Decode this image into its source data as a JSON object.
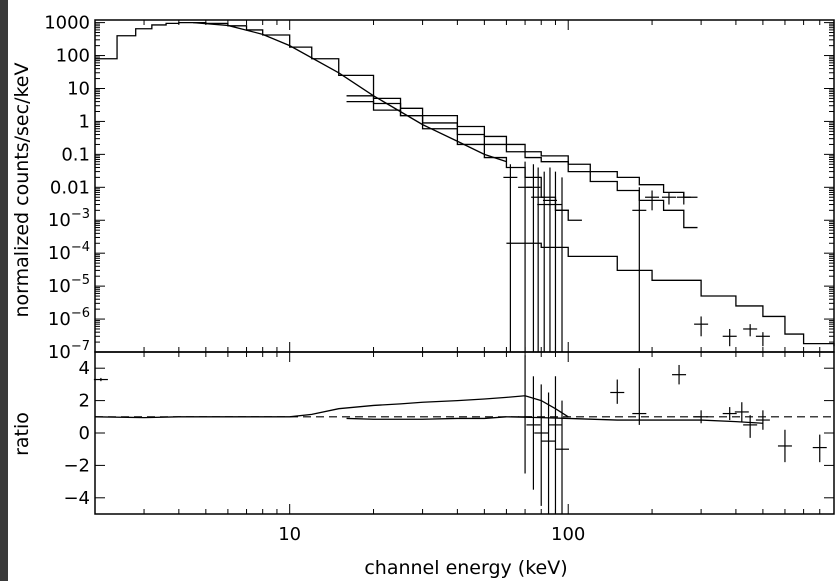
{
  "window": {
    "frame_color": "#3a3a3a",
    "background": "#ffffff",
    "ink": "#000000"
  },
  "chart_data": [
    {
      "type": "line",
      "panel": "top",
      "title": "",
      "xlabel": "",
      "ylabel": "normalized counts/sec/keV",
      "x_scale": "log",
      "y_scale": "log",
      "xlim": [
        2,
        900
      ],
      "ylim": [
        1e-07,
        1200
      ],
      "ytick_labels": [
        {
          "value": 1e-07,
          "base": "10",
          "exp": "−7"
        },
        {
          "value": 1e-06,
          "base": "10",
          "exp": "−6"
        },
        {
          "value": 1e-05,
          "base": "10",
          "exp": "−5"
        },
        {
          "value": 0.0001,
          "base": "10",
          "exp": "−4"
        },
        {
          "value": 0.001,
          "base": "10",
          "exp": "−3"
        },
        {
          "value": 0.01,
          "text": "0.01"
        },
        {
          "value": 0.1,
          "text": "0.1"
        },
        {
          "value": 1,
          "text": "1"
        },
        {
          "value": 10,
          "text": "10"
        },
        {
          "value": 100,
          "text": "100"
        },
        {
          "value": 1000,
          "text": "1000"
        }
      ],
      "series": [
        {
          "style": "step",
          "x": [
            2,
            2.4,
            2.8,
            3.2,
            3.6,
            4.0,
            4.5,
            5,
            6,
            7,
            8,
            10,
            12,
            15,
            20,
            25,
            30,
            40,
            50,
            60,
            70,
            80,
            90,
            100
          ],
          "y": [
            80,
            400,
            650,
            850,
            950,
            1000,
            1000,
            950,
            800,
            600,
            420,
            180,
            80,
            25,
            5,
            1.5,
            0.6,
            0.2,
            0.08,
            0.04,
            0.02,
            0.005,
            0.002,
            0.001
          ]
        },
        {
          "style": "line",
          "x": [
            4.5,
            6,
            8,
            10,
            15,
            20,
            30,
            40,
            50,
            60
          ],
          "y": [
            1000,
            820,
            440,
            200,
            30,
            6,
            0.8,
            0.25,
            0.1,
            0.06
          ]
        },
        {
          "style": "step",
          "x": [
            16,
            20,
            25,
            30,
            40,
            50,
            60,
            70,
            80,
            100,
            120,
            150,
            180,
            220,
            260
          ],
          "y": [
            4,
            2.2,
            1.5,
            0.9,
            0.4,
            0.2,
            0.12,
            0.08,
            0.06,
            0.03,
            0.015,
            0.008,
            0.004,
            0.002,
            0.0006
          ]
        },
        {
          "style": "step",
          "x": [
            16,
            20,
            25,
            30,
            40,
            50,
            60,
            70,
            80,
            100,
            120,
            150,
            180,
            220,
            260
          ],
          "y": [
            6,
            3.5,
            2.5,
            1.5,
            0.7,
            0.35,
            0.2,
            0.12,
            0.09,
            0.05,
            0.03,
            0.02,
            0.012,
            0.007,
            0.005
          ]
        },
        {
          "style": "step",
          "x": [
            60,
            80,
            100,
            150,
            200,
            300,
            400,
            500,
            600,
            700,
            900
          ],
          "y": [
            0.0002,
            0.00015,
            8e-05,
            3e-05,
            1.5e-05,
            5e-06,
            2.5e-06,
            1.2e-06,
            3.5e-07,
            1.8e-07,
            1.5e-07
          ]
        }
      ],
      "error_bars": [
        {
          "x": 62,
          "y": 0.02,
          "ylo": 1e-07,
          "yhi": 0.05
        },
        {
          "x": 70,
          "y": 0.01,
          "ylo": 1e-07,
          "yhi": 0.06
        },
        {
          "x": 75,
          "y": 0.01,
          "ylo": 1e-07,
          "yhi": 0.05
        },
        {
          "x": 78,
          "y": 0.005,
          "ylo": 1e-07,
          "yhi": 0.04
        },
        {
          "x": 82,
          "y": 0.003,
          "ylo": 1e-07,
          "yhi": 0.03
        },
        {
          "x": 86,
          "y": 0.004,
          "ylo": 1e-07,
          "yhi": 0.04
        },
        {
          "x": 90,
          "y": 0.003,
          "ylo": 1e-07,
          "yhi": 0.03
        },
        {
          "x": 95,
          "y": 0.002,
          "ylo": 1e-07,
          "yhi": 0.02
        },
        {
          "x": 180,
          "y": 0.002,
          "ylo": 1e-07,
          "yhi": 0.01
        },
        {
          "x": 200,
          "y": 0.005,
          "ylo": 0.002,
          "yhi": 0.008
        },
        {
          "x": 230,
          "y": 0.005,
          "ylo": 0.003,
          "yhi": 0.007
        },
        {
          "x": 260,
          "y": 0.005,
          "ylo": 0.003,
          "yhi": 0.007
        },
        {
          "x": 300,
          "y": 7e-07,
          "ylo": 3e-07,
          "yhi": 1.2e-06
        },
        {
          "x": 380,
          "y": 3e-07,
          "ylo": 1.5e-07,
          "yhi": 5e-07
        },
        {
          "x": 450,
          "y": 5e-07,
          "ylo": 3e-07,
          "yhi": 7e-07
        },
        {
          "x": 500,
          "y": 3e-07,
          "ylo": 1.5e-07,
          "yhi": 4e-07
        }
      ]
    },
    {
      "type": "line",
      "panel": "bottom",
      "title": "",
      "xlabel": "channel energy (keV)",
      "ylabel": "ratio",
      "x_scale": "log",
      "y_scale": "linear",
      "xlim": [
        2,
        900
      ],
      "ylim": [
        -5,
        5
      ],
      "xtick_labels": [
        {
          "value": 10,
          "text": "10"
        },
        {
          "value": 100,
          "text": "100"
        }
      ],
      "ytick_labels": [
        {
          "value": 4,
          "text": "4"
        },
        {
          "value": 2,
          "text": "2"
        },
        {
          "value": 0,
          "text": "0"
        },
        {
          "value": -2,
          "text": "−2"
        },
        {
          "value": -4,
          "text": "−4"
        }
      ],
      "reference_line": 1,
      "series": [
        {
          "style": "line",
          "x": [
            2,
            3,
            4,
            6,
            8,
            10,
            12,
            15,
            20,
            25,
            30,
            40,
            50,
            60,
            70,
            80,
            90,
            100
          ],
          "y": [
            1,
            0.95,
            1.0,
            1.0,
            1.0,
            1.0,
            1.15,
            1.5,
            1.7,
            1.8,
            1.9,
            2.0,
            2.1,
            2.2,
            2.3,
            2.0,
            1.5,
            1.0
          ]
        },
        {
          "style": "line",
          "x": [
            16,
            20,
            30,
            40,
            50,
            60,
            80,
            100,
            150,
            200,
            300,
            400,
            500
          ],
          "y": [
            0.9,
            0.85,
            0.85,
            0.9,
            0.9,
            1.0,
            0.95,
            0.9,
            0.8,
            0.8,
            0.8,
            0.7,
            0.6
          ]
        }
      ],
      "error_bars": [
        {
          "x": 2.1,
          "y": 3.3,
          "ylo": 3.2,
          "yhi": 3.4
        },
        {
          "x": 70,
          "y": 1.0,
          "ylo": -2.5,
          "yhi": 4.8
        },
        {
          "x": 75,
          "y": 0.5,
          "ylo": -3.5,
          "yhi": 3.5
        },
        {
          "x": 80,
          "y": 0.0,
          "ylo": -4.5,
          "yhi": 3.0
        },
        {
          "x": 85,
          "y": -0.5,
          "ylo": -5.0,
          "yhi": 2.5
        },
        {
          "x": 90,
          "y": 0.5,
          "ylo": -5.0,
          "yhi": 3.5
        },
        {
          "x": 95,
          "y": -1.0,
          "ylo": -5.0,
          "yhi": 2.0
        },
        {
          "x": 150,
          "y": 2.5,
          "ylo": 1.8,
          "yhi": 3.3
        },
        {
          "x": 180,
          "y": 1.2,
          "ylo": 0.5,
          "yhi": 4.0
        },
        {
          "x": 250,
          "y": 3.6,
          "ylo": 3.0,
          "yhi": 4.2
        },
        {
          "x": 300,
          "y": 1.0,
          "ylo": 0.6,
          "yhi": 1.4
        },
        {
          "x": 380,
          "y": 1.2,
          "ylo": 0.8,
          "yhi": 1.6
        },
        {
          "x": 420,
          "y": 1.3,
          "ylo": 0.7,
          "yhi": 1.9
        },
        {
          "x": 450,
          "y": 0.5,
          "ylo": -0.3,
          "yhi": 1.1
        },
        {
          "x": 500,
          "y": 0.8,
          "ylo": 0.2,
          "yhi": 1.4
        },
        {
          "x": 600,
          "y": -0.8,
          "ylo": -1.8,
          "yhi": 0.2
        },
        {
          "x": 800,
          "y": -0.9,
          "ylo": -1.8,
          "yhi": -0.1
        }
      ]
    }
  ]
}
